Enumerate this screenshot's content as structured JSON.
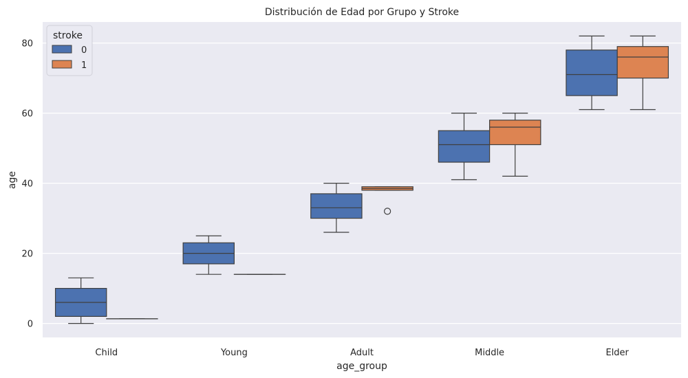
{
  "chart_data": {
    "type": "box",
    "title": "Distribución de Edad por Grupo y Stroke",
    "xlabel": "age_group",
    "ylabel": "age",
    "categories": [
      "Child",
      "Young",
      "Adult",
      "Middle",
      "Elder"
    ],
    "ylim": [
      -4,
      86
    ],
    "yticks": [
      0,
      20,
      40,
      60,
      80
    ],
    "grid": true,
    "legend": {
      "title": "stroke",
      "placement": "top-left"
    },
    "series": [
      {
        "name": "0",
        "color": "#4C72B0",
        "boxes": [
          {
            "whislo": 0,
            "q1": 2,
            "med": 6,
            "q3": 10,
            "whishi": 13,
            "fliers": []
          },
          {
            "whislo": 14,
            "q1": 17,
            "med": 20,
            "q3": 23,
            "whishi": 25,
            "fliers": []
          },
          {
            "whislo": 26,
            "q1": 30,
            "med": 33,
            "q3": 37,
            "whishi": 40,
            "fliers": []
          },
          {
            "whislo": 41,
            "q1": 46,
            "med": 51,
            "q3": 55,
            "whishi": 60,
            "fliers": []
          },
          {
            "whislo": 61,
            "q1": 65,
            "med": 71,
            "q3": 78,
            "whishi": 82,
            "fliers": []
          }
        ]
      },
      {
        "name": "1",
        "color": "#DD8452",
        "boxes": [
          {
            "whislo": 1.32,
            "q1": 1.32,
            "med": 1.32,
            "q3": 1.32,
            "whishi": 1.32,
            "fliers": []
          },
          {
            "whislo": 14,
            "q1": 14,
            "med": 14,
            "q3": 14,
            "whishi": 14,
            "fliers": []
          },
          {
            "whislo": 38,
            "q1": 38,
            "med": 38.5,
            "q3": 39,
            "whishi": 39,
            "fliers": [
              32
            ]
          },
          {
            "whislo": 42,
            "q1": 51,
            "med": 56,
            "q3": 58,
            "whishi": 60,
            "fliers": []
          },
          {
            "whislo": 61,
            "q1": 70,
            "med": 76,
            "q3": 79,
            "whishi": 82,
            "fliers": []
          }
        ]
      }
    ]
  }
}
